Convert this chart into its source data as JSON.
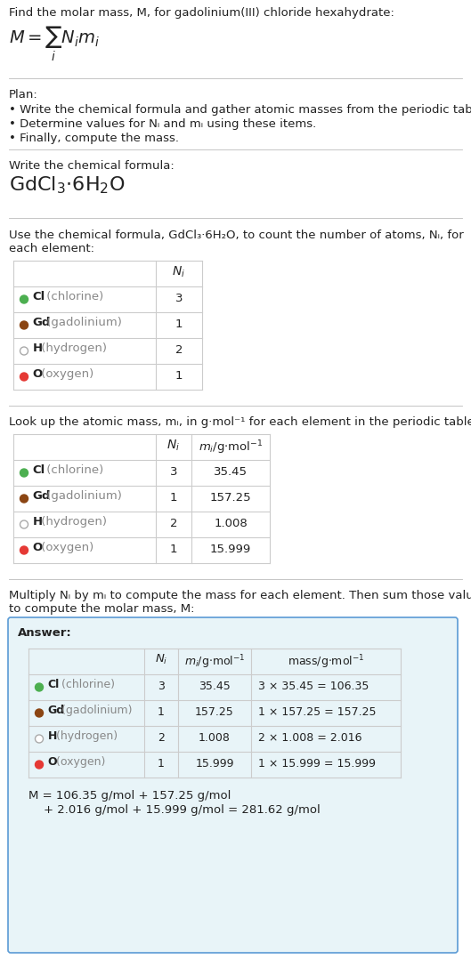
{
  "title_line": "Find the molar mass, M, for gadolinium(III) chloride hexahydrate:",
  "plan_header": "Plan:",
  "plan_bullets": [
    "• Write the chemical formula and gather atomic masses from the periodic table.",
    "• Determine values for Nᵢ and mᵢ using these items.",
    "• Finally, compute the mass."
  ],
  "step1_header": "Write the chemical formula:",
  "step2_header_1": "Use the chemical formula, GdCl₃·6H₂O, to count the number of atoms, Nᵢ, for",
  "step2_header_2": "each element:",
  "step3_header": "Look up the atomic mass, mᵢ, in g·mol⁻¹ for each element in the periodic table:",
  "step4_header_1": "Multiply Nᵢ by mᵢ to compute the mass for each element. Then sum those values",
  "step4_header_2": "to compute the molar mass, M:",
  "answer_label": "Answer:",
  "elements_bold": [
    "Cl",
    "Gd",
    "H",
    "O"
  ],
  "elements_rest": [
    " (chlorine)",
    " (gadolinium)",
    " (hydrogen)",
    " (oxygen)"
  ],
  "element_colors": [
    "#4caf50",
    "#8b4513",
    "#ffffff",
    "#e53935"
  ],
  "element_dot_outline": [
    false,
    false,
    true,
    false
  ],
  "table1_ni": [
    "3",
    "1",
    "2",
    "1"
  ],
  "table2_ni": [
    "3",
    "1",
    "2",
    "1"
  ],
  "table2_mi": [
    "35.45",
    "157.25",
    "1.008",
    "15.999"
  ],
  "table3_ni": [
    "3",
    "1",
    "2",
    "1"
  ],
  "table3_mi": [
    "35.45",
    "157.25",
    "1.008",
    "15.999"
  ],
  "table3_mass": [
    "3 × 35.45 = 106.35",
    "1 × 157.25 = 157.25",
    "2 × 1.008 = 2.016",
    "1 × 15.999 = 15.999"
  ],
  "final_line1": "M = 106.35 g/mol + 157.25 g/mol",
  "final_line2": "    + 2.016 g/mol + 15.999 g/mol = 281.62 g/mol",
  "bg_color": "#ffffff",
  "answer_box_color": "#e8f4f8",
  "answer_box_border": "#5b9bd5",
  "table_line_color": "#cccccc",
  "sep_line_color": "#bbbbbb"
}
